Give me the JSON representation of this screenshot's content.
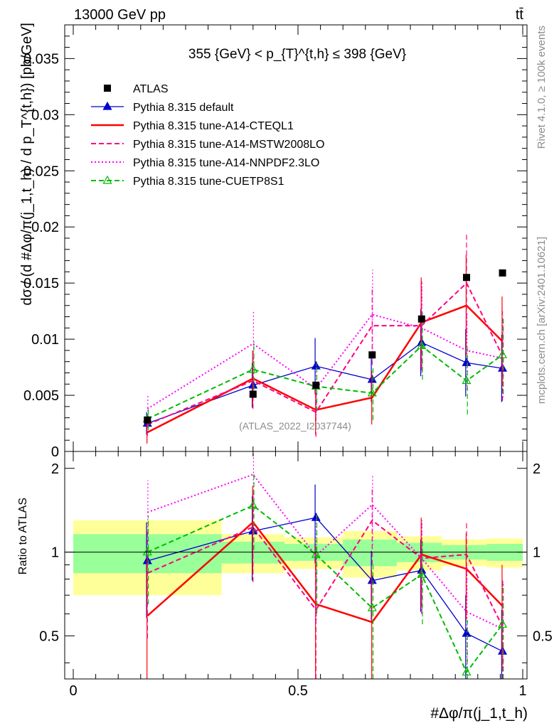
{
  "header": {
    "left": "13000 GeV pp",
    "right": "tt̄",
    "right_side_1": "Rivet 4.1.0, ≥ 100k events",
    "right_side_2": "mcplots.cern.ch [arXiv:2401.10621]"
  },
  "chart_data": {
    "type": "line",
    "title": "355 {GeV} < p_{T}^{t,h} ≤ 398 {GeV}",
    "watermark": "(ATLAS_2022_I2037744)",
    "xlabel": "#Δφ/π(j_1,t_h)",
    "ylabel": "dσ / (d #Δφ/π(j_1,t_h) / d p_T^{t,h}) [pb/GeV]",
    "ratio_ylabel": "Ratio to ATLAS",
    "xlim": [
      0,
      1
    ],
    "ylim": [
      0,
      0.038
    ],
    "ratio_ylim": [
      0.35,
      2.3
    ],
    "x_ticks": [
      "0",
      "0.5",
      "1"
    ],
    "y_ticks": [
      "0",
      "0.005",
      "0.01",
      "0.015",
      "0.02",
      "0.025",
      "0.03",
      "0.035"
    ],
    "ratio_ticks": [
      "0.5",
      "1",
      "2"
    ],
    "x": [
      0.165,
      0.4,
      0.54,
      0.665,
      0.775,
      0.875,
      0.955
    ],
    "data": {
      "name": "ATLAS",
      "values": [
        0.0028,
        0.0051,
        0.0059,
        0.0086,
        0.0118,
        0.0155,
        0.0159
      ],
      "band_edges": [
        0,
        0.33,
        0.47,
        0.6,
        0.72,
        0.82,
        0.92,
        1.0
      ],
      "band_green": [
        0.16,
        0.09,
        0.07,
        0.11,
        0.08,
        0.06,
        0.07
      ],
      "band_yellow": [
        0.3,
        0.16,
        0.13,
        0.19,
        0.14,
        0.11,
        0.12
      ]
    },
    "series": [
      {
        "name": "Pythia 8.315 default",
        "color": "#0000cc",
        "style": "solid",
        "marker": "triangle-filled",
        "values": [
          0.0025,
          0.0059,
          0.0076,
          0.0064,
          0.0097,
          0.0079,
          0.0074
        ],
        "errors": [
          0.001,
          0.002,
          0.0025,
          0.002,
          0.003,
          0.003,
          0.003
        ],
        "ratio": [
          0.93,
          1.19,
          1.33,
          0.79,
          0.86,
          0.51,
          0.44
        ],
        "ratio_errors": [
          0.35,
          0.4,
          0.42,
          0.22,
          0.25,
          0.19,
          0.18
        ]
      },
      {
        "name": "Pythia 8.315 tune-A14-CTEQL1",
        "color": "#ff0000",
        "style": "solid",
        "marker": "none",
        "values": [
          0.0017,
          0.0065,
          0.0037,
          0.0048,
          0.0115,
          0.013,
          0.0098
        ],
        "errors": [
          0.001,
          0.0025,
          0.0022,
          0.0024,
          0.004,
          0.0045,
          0.004
        ],
        "ratio": [
          0.59,
          1.28,
          0.65,
          0.56,
          0.98,
          0.87,
          0.64
        ],
        "ratio_errors": [
          0.35,
          0.45,
          0.4,
          0.3,
          0.35,
          0.3,
          0.26
        ]
      },
      {
        "name": "Pythia 8.315 tune-A14-MSTW2008LO",
        "color": "#ff0080",
        "style": "dashed",
        "marker": "none",
        "values": [
          0.0024,
          0.0063,
          0.0035,
          0.0112,
          0.0112,
          0.015,
          0.0085
        ],
        "errors": [
          0.001,
          0.0025,
          0.0022,
          0.0035,
          0.004,
          0.0045,
          0.004
        ],
        "ratio": [
          0.84,
          1.23,
          0.62,
          1.3,
          0.95,
          0.98,
          0.54
        ],
        "ratio_errors": [
          0.35,
          0.45,
          0.4,
          0.4,
          0.35,
          0.3,
          0.26
        ]
      },
      {
        "name": "Pythia 8.315 tune-A14-NNPDF2.3LO",
        "color": "#ff00ff",
        "style": "dotted",
        "marker": "none",
        "values": [
          0.0038,
          0.0096,
          0.0056,
          0.0122,
          0.011,
          0.009,
          0.0083
        ],
        "errors": [
          0.0012,
          0.003,
          0.0024,
          0.004,
          0.004,
          0.0035,
          0.0035
        ],
        "ratio": [
          1.39,
          1.9,
          0.97,
          1.48,
          0.95,
          0.61,
          0.53
        ],
        "ratio_errors": [
          0.42,
          0.55,
          0.4,
          0.42,
          0.35,
          0.28,
          0.26
        ]
      },
      {
        "name": "Pythia 8.315 tune-CUETP8S1",
        "color": "#00bb00",
        "style": "dashed",
        "marker": "triangle-open",
        "values": [
          0.0029,
          0.0073,
          0.0058,
          0.0052,
          0.0094,
          0.0063,
          0.0086
        ],
        "errors": [
          0.001,
          0.0025,
          0.0022,
          0.0024,
          0.003,
          0.003,
          0.0035
        ],
        "ratio": [
          1.0,
          1.47,
          0.98,
          0.63,
          0.83,
          0.37,
          0.55
        ],
        "ratio_errors": [
          0.35,
          0.45,
          0.38,
          0.28,
          0.28,
          0.2,
          0.22
        ]
      }
    ]
  }
}
